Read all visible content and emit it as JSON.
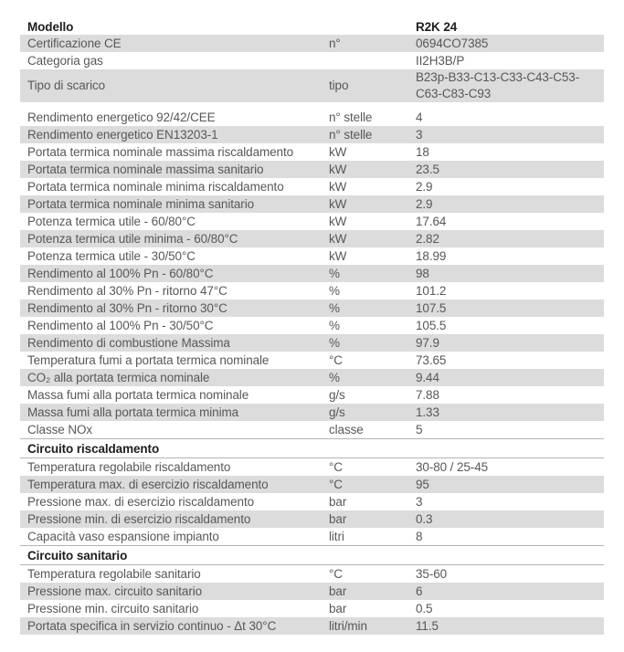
{
  "colors": {
    "row_shaded_bg": "#dcdcdc",
    "text": "#58585a",
    "heading_text": "#1d1d1b",
    "hairline": "#b3b3b3"
  },
  "table": {
    "header": {
      "label": "Modello",
      "value": "R2K 24"
    },
    "groups": [
      {
        "type": "rows",
        "rows": [
          {
            "label": "Certificazione CE",
            "unit": "n°",
            "value": "0694CO7385",
            "shaded": true
          },
          {
            "label": "Categoria gas",
            "unit": "",
            "value": "II2H3B/P",
            "shaded": false
          },
          {
            "label": "Tipo di scarico",
            "unit": "tipo",
            "value": "B23p-B33-C13-C33-C43-C53-C63-C83-C93",
            "shaded": true
          }
        ]
      },
      {
        "type": "gap"
      },
      {
        "type": "rows",
        "rows": [
          {
            "label": "Rendimento energetico 92/42/CEE",
            "unit": "n° stelle",
            "value": "4",
            "shaded": false
          },
          {
            "label": "Rendimento energetico EN13203-1",
            "unit": "n° stelle",
            "value": "3",
            "shaded": true
          },
          {
            "label": "Portata termica nominale massima riscaldamento",
            "unit": "kW",
            "value": "18",
            "shaded": false
          },
          {
            "label": "Portata termica nominale massima sanitario",
            "unit": "kW",
            "value": "23.5",
            "shaded": true
          },
          {
            "label": "Portata termica nominale minima riscaldamento",
            "unit": "kW",
            "value": "2.9",
            "shaded": false
          },
          {
            "label": "Portata termica nominale minima sanitario",
            "unit": "kW",
            "value": "2.9",
            "shaded": true
          },
          {
            "label": "Potenza termica utile - 60/80°C",
            "unit": "kW",
            "value": "17.64",
            "shaded": false
          },
          {
            "label": "Potenza termica utile minima - 60/80°C",
            "unit": "kW",
            "value": "2.82",
            "shaded": true
          },
          {
            "label": "Potenza termica utile - 30/50°C",
            "unit": "kW",
            "value": "18.99",
            "shaded": false
          },
          {
            "label": "Rendimento al 100% Pn - 60/80°C",
            "unit": "%",
            "value": "98",
            "shaded": true
          },
          {
            "label": "Rendimento al 30% Pn - ritorno 47°C",
            "unit": "%",
            "value": "101.2",
            "shaded": false
          },
          {
            "label": "Rendimento al 30% Pn - ritorno 30°C",
            "unit": "%",
            "value": "107.5",
            "shaded": true
          },
          {
            "label": "Rendimento al 100% Pn - 30/50°C",
            "unit": "%",
            "value": "105.5",
            "shaded": false
          },
          {
            "label": "Rendimento di combustione Massima",
            "unit": "%",
            "value": "97.9",
            "shaded": true
          },
          {
            "label": "Temperatura fumi a portata termica nominale",
            "unit": "°C",
            "value": "73.65",
            "shaded": false
          },
          {
            "label": "CO₂ alla portata termica nominale",
            "unit": "%",
            "value": "9.44",
            "shaded": true
          },
          {
            "label": "Massa fumi alla portata termica nominale",
            "unit": "g/s",
            "value": "7.88",
            "shaded": false
          },
          {
            "label": "Massa fumi alla portata termica minima",
            "unit": "g/s",
            "value": "1.33",
            "shaded": true
          },
          {
            "label": "Classe NOx",
            "unit": "classe",
            "value": "5",
            "shaded": false
          }
        ]
      },
      {
        "type": "section",
        "title": "Circuito riscaldamento"
      },
      {
        "type": "rows",
        "rows": [
          {
            "label": "Temperatura regolabile riscaldamento",
            "unit": "°C",
            "value": "30-80 / 25-45",
            "shaded": false
          },
          {
            "label": "Temperatura max. di esercizio riscaldamento",
            "unit": "°C",
            "value": "95",
            "shaded": true
          },
          {
            "label": "Pressione max. di esercizio riscaldamento",
            "unit": "bar",
            "value": "3",
            "shaded": false
          },
          {
            "label": "Pressione min. di esercizio riscaldamento",
            "unit": "bar",
            "value": "0.3",
            "shaded": true
          },
          {
            "label": "Capacità vaso espansione impianto",
            "unit": "litri",
            "value": "8",
            "shaded": false
          }
        ]
      },
      {
        "type": "section",
        "title": "Circuito sanitario"
      },
      {
        "type": "rows",
        "rows": [
          {
            "label": "Temperatura regolabile sanitario",
            "unit": "°C",
            "value": "35-60",
            "shaded": false
          },
          {
            "label": "Pressione max. circuito sanitario",
            "unit": "bar",
            "value": "6",
            "shaded": true
          },
          {
            "label": "Pressione min. circuito sanitario",
            "unit": "bar",
            "value": "0.5",
            "shaded": false
          },
          {
            "label": "Portata specifica in servizio continuo - Δt 30°C",
            "unit": "litri/min",
            "value": "11.5",
            "shaded": true
          }
        ]
      }
    ]
  }
}
